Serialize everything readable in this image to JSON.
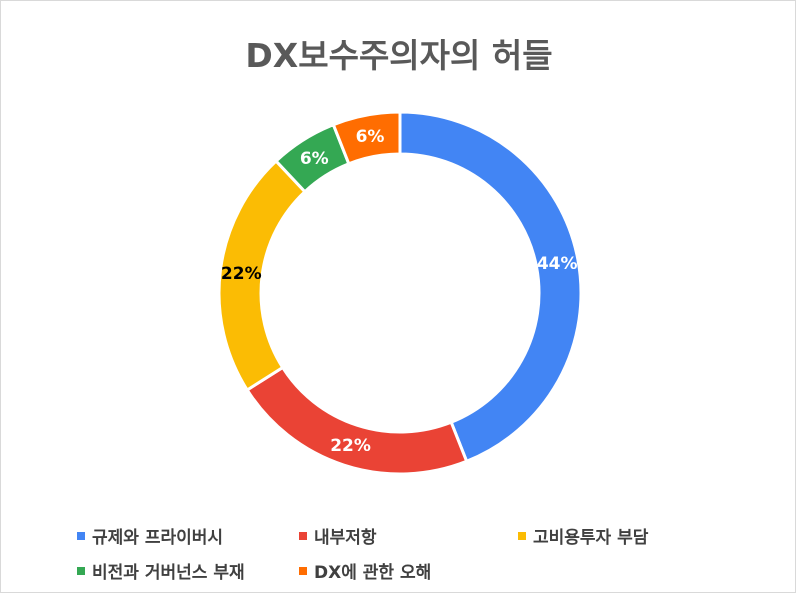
{
  "chart_data": {
    "type": "pie",
    "title": "DX보수주의자의 허들",
    "donut": true,
    "categories": [
      "규제와 프라이버시",
      "내부저항",
      "고비용투자 부담",
      "비전과 거버넌스 부재",
      "DX에 관한 오해"
    ],
    "values": [
      44,
      22,
      22,
      6,
      6
    ],
    "data_labels": [
      "44%",
      "22%",
      "22%",
      "6%",
      "6%"
    ],
    "colors": [
      "#4285F4",
      "#EA4335",
      "#FBBC04",
      "#34A853",
      "#FF6D01"
    ],
    "label_colors": [
      "#ffffff",
      "#ffffff",
      "#000000",
      "#ffffff",
      "#ffffff"
    ],
    "legend_position": "bottom"
  }
}
